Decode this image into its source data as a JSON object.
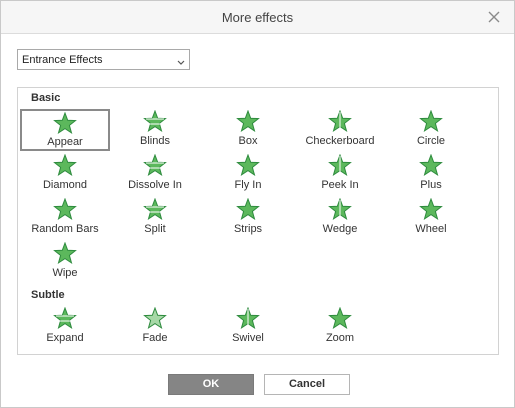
{
  "dialog": {
    "title": "More effects",
    "close_icon": "close-icon"
  },
  "category_select": {
    "value": "Entrance Effects"
  },
  "sections": [
    {
      "title": "Basic",
      "effects": [
        {
          "label": "Appear",
          "icon": "appear-star-icon",
          "selected": true
        },
        {
          "label": "Blinds",
          "icon": "blinds-star-icon"
        },
        {
          "label": "Box",
          "icon": "box-star-icon"
        },
        {
          "label": "Checkerboard",
          "icon": "checkerboard-star-icon"
        },
        {
          "label": "Circle",
          "icon": "circle-star-icon"
        },
        {
          "label": "Diamond",
          "icon": "diamond-star-icon"
        },
        {
          "label": "Dissolve In",
          "icon": "dissolve-in-star-icon"
        },
        {
          "label": "Fly In",
          "icon": "fly-in-star-icon"
        },
        {
          "label": "Peek In",
          "icon": "peek-in-star-icon"
        },
        {
          "label": "Plus",
          "icon": "plus-star-icon"
        },
        {
          "label": "Random Bars",
          "icon": "random-bars-star-icon"
        },
        {
          "label": "Split",
          "icon": "split-star-icon"
        },
        {
          "label": "Strips",
          "icon": "strips-star-icon"
        },
        {
          "label": "Wedge",
          "icon": "wedge-star-icon"
        },
        {
          "label": "Wheel",
          "icon": "wheel-star-icon"
        },
        {
          "label": "Wipe",
          "icon": "wipe-star-icon"
        }
      ]
    },
    {
      "title": "Subtle",
      "effects": [
        {
          "label": "Expand",
          "icon": "expand-star-icon"
        },
        {
          "label": "Fade",
          "icon": "fade-star-icon"
        },
        {
          "label": "Swivel",
          "icon": "swivel-star-icon"
        },
        {
          "label": "Zoom",
          "icon": "zoom-star-icon"
        }
      ]
    }
  ],
  "buttons": {
    "ok": "OK",
    "cancel": "Cancel"
  },
  "colors": {
    "star_fill": "#5cb85c",
    "star_dark": "#2e8b3e",
    "ok_bg": "#858585"
  }
}
